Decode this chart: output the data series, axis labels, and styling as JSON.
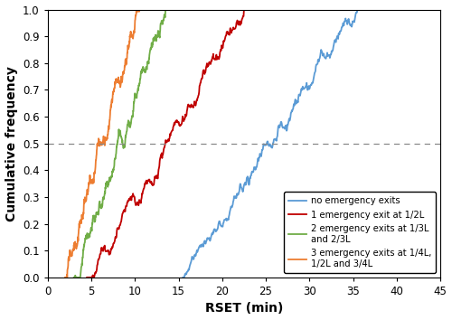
{
  "title": "",
  "xlabel": "RSET (min)",
  "ylabel": "Cumulative frequency",
  "xlim": [
    0,
    45
  ],
  "ylim": [
    0,
    1.0
  ],
  "xticks": [
    0,
    5,
    10,
    15,
    20,
    25,
    30,
    35,
    40,
    45
  ],
  "yticks": [
    0.0,
    0.1,
    0.2,
    0.3,
    0.4,
    0.5,
    0.6,
    0.7,
    0.8,
    0.9,
    1.0
  ],
  "hline_y": 0.5,
  "hline_color": "#888888",
  "curves": [
    {
      "label": "no emergency exits",
      "color": "#5b9bd5",
      "x_start": 15.5,
      "x_end": 35.5,
      "y_start": 0.0,
      "y_end": 1.0,
      "noise_scale": 0.018,
      "seed": 42
    },
    {
      "label": "1 emergency exit at 1/2L",
      "color": "#c00000",
      "x_start": 4.5,
      "x_end": 22.5,
      "y_start": 0.0,
      "y_end": 1.0,
      "noise_scale": 0.025,
      "seed": 10
    },
    {
      "label": "2 emergency exits at 1/3L\nand 2/3L",
      "color": "#70ad47",
      "x_start": 3.0,
      "x_end": 13.5,
      "y_start": 0.0,
      "y_end": 1.0,
      "noise_scale": 0.025,
      "seed": 7
    },
    {
      "label": "3 emergency exits at 1/4L,\n1/2L and 3/4L",
      "color": "#ed7d31",
      "x_start": 2.0,
      "x_end": 10.5,
      "y_start": 0.0,
      "y_end": 1.0,
      "noise_scale": 0.025,
      "seed": 3
    }
  ]
}
